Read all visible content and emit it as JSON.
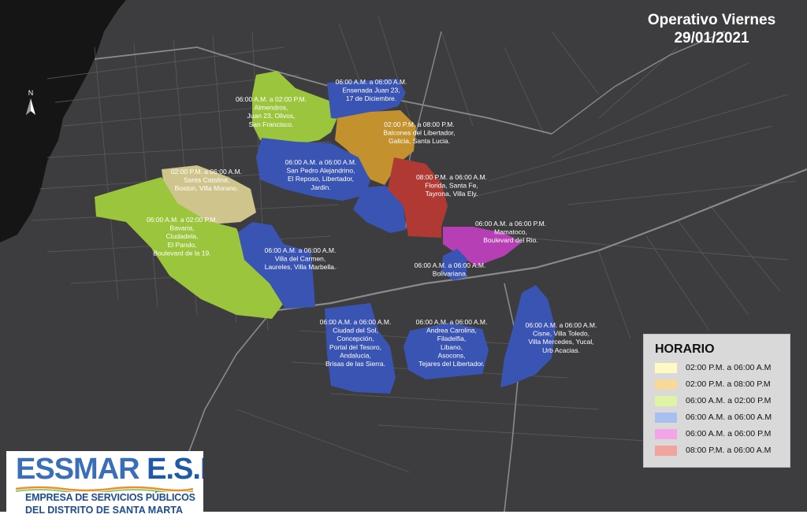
{
  "title": {
    "line1": "Operativo Viernes",
    "line2": "29/01/2021"
  },
  "north_arrow": {
    "label": "N",
    "icon": "north-arrow-icon"
  },
  "legend": {
    "title": "HORARIO",
    "items": [
      {
        "label": "02:00 P.M. a 06:00 A.M",
        "color": "#fdfac6"
      },
      {
        "label": "02:00 P.M. a 08:00 P.M",
        "color": "#f8d99a"
      },
      {
        "label": "06:00 A.M. a 02:00 P.M",
        "color": "#dff3a4"
      },
      {
        "label": "06:00 A.M. a 06:00 A.M",
        "color": "#a9bff2"
      },
      {
        "label": "06:00 A.M. a 06:00 P.M",
        "color": "#f3a5ea"
      },
      {
        "label": "08:00 P.M. a 06:00 A.M",
        "color": "#f1a49f"
      }
    ]
  },
  "zone_colors": {
    "green": "#9bc53c",
    "tan": "#cfc48c",
    "orange": "#c3922f",
    "blue": "#3a54b4",
    "red": "#b03a33",
    "magenta": "#b73fb6"
  },
  "zones": [
    {
      "id": "almendros",
      "lines": [
        "06:00 A.M. a 02:00 P.M.",
        "Almendros,",
        "Juan 23, Olivos,",
        "San Francisco."
      ]
    },
    {
      "id": "ensenada",
      "lines": [
        "06:00 A.M. a 06:00 A.M.",
        "Ensenada Juan 23,",
        "17 de Diciembre."
      ]
    },
    {
      "id": "balcones",
      "lines": [
        "02:00 P.M. a 08:00 P.M.",
        "Balcones del Libertador,",
        "Galicia, Santa Lucia."
      ]
    },
    {
      "id": "san-pedro",
      "lines": [
        "06:00 A.M. a 06:00 A.M.",
        "San Pedro Alejandrino,",
        "El Reposo, Libertador,",
        "Jardin."
      ]
    },
    {
      "id": "santa-catalina",
      "lines": [
        "02:00 P.M. a 06:00 A.M.",
        "Santa Catalina,",
        "Boston, Villa Morano."
      ]
    },
    {
      "id": "florida",
      "lines": [
        "08:00 P.M. a 06:00 A.M.",
        "Florida, Santa Fe,",
        "Tayrona, Villa Ely."
      ]
    },
    {
      "id": "bavaria",
      "lines": [
        "06:00 A.M. a 02:00 P.M.",
        "Bavaria,",
        "Ciudadela,",
        "El Pando,",
        "Boulevard de la 19."
      ]
    },
    {
      "id": "mamatoco",
      "lines": [
        "06:00 A.M. a 06:00 P.M.",
        "Mamatoco,",
        "Boulevard del Rio."
      ]
    },
    {
      "id": "villa-del-carmen",
      "lines": [
        "06:00 A.M. a 06:00 A.M.",
        "Villa del Carmen,",
        "Laureles, Villa Marbella."
      ]
    },
    {
      "id": "bolivariana",
      "lines": [
        "06:00 A.M. a 06:00 A.M.",
        "Bolivariana."
      ]
    },
    {
      "id": "ciudad-del-sol",
      "lines": [
        "06:00 A.M. a 06:00 A.M.",
        "Ciudad del Sol,",
        "Concepción,",
        "Portal del Tesoro,",
        "Andalucia,",
        "Brisas de las Sierra."
      ]
    },
    {
      "id": "andrea-carolina",
      "lines": [
        "06:00 A.M. a 06:00 A.M.",
        "Andrea Carolina,",
        "Filadelfia,",
        "Libano,",
        "Asocons,",
        "Tejares del Libertador."
      ]
    },
    {
      "id": "cisne",
      "lines": [
        "06:00 A.M. a 06:00 A.M.",
        "Cisne, Villa Toledo,",
        "Villa Mercedes, Yucal,",
        "Urb Acacias."
      ]
    }
  ],
  "logo": {
    "part1": "ESSMAR",
    "part2": "E.S.P.",
    "subtitle1": "EMPRESA DE SERVICIOS PÚBLICOS",
    "subtitle2": "DEL DISTRITO DE SANTA MARTA"
  }
}
